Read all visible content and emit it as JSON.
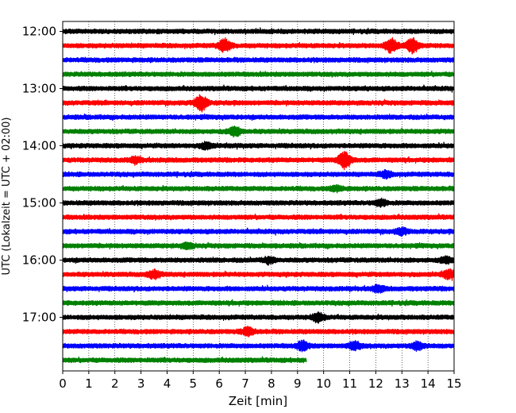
{
  "chart_data": {
    "type": "line",
    "title": "",
    "xlabel": "Zeit  [min]",
    "ylabel": "UTC (Lokalzeit = UTC + 02:00)",
    "xlim": [
      0,
      15
    ],
    "x_ticks": [
      "0",
      "1",
      "2",
      "3",
      "4",
      "5",
      "6",
      "7",
      "8",
      "9",
      "10",
      "11",
      "12",
      "13",
      "14",
      "15"
    ],
    "y_ticks": [
      "12:00",
      "13:00",
      "14:00",
      "15:00",
      "16:00",
      "17:00"
    ],
    "row_interval_minutes": 15,
    "first_row_time": "12:00",
    "grid": "vertical dotted lines at each minute",
    "legend": "none",
    "colors_cycle": [
      "#000000",
      "#ff0000",
      "#0000ff",
      "#008000"
    ],
    "series": [
      {
        "time": "12:00",
        "color": "#000000",
        "end_min": 15,
        "events": []
      },
      {
        "time": "12:15",
        "color": "#ff0000",
        "end_min": 15,
        "events": [
          {
            "t": 6.2,
            "amp": 3.2
          },
          {
            "t": 12.6,
            "amp": 3.5
          },
          {
            "t": 13.4,
            "amp": 3.8
          }
        ]
      },
      {
        "time": "12:30",
        "color": "#0000ff",
        "end_min": 15,
        "events": []
      },
      {
        "time": "12:45",
        "color": "#008000",
        "end_min": 15,
        "events": []
      },
      {
        "time": "13:00",
        "color": "#000000",
        "end_min": 15,
        "events": []
      },
      {
        "time": "13:15",
        "color": "#ff0000",
        "end_min": 15,
        "events": [
          {
            "t": 5.3,
            "amp": 4.0
          }
        ]
      },
      {
        "time": "13:30",
        "color": "#0000ff",
        "end_min": 15,
        "events": []
      },
      {
        "time": "13:45",
        "color": "#008000",
        "end_min": 15,
        "events": [
          {
            "t": 6.6,
            "amp": 2.2
          }
        ]
      },
      {
        "time": "14:00",
        "color": "#000000",
        "end_min": 15,
        "events": [
          {
            "t": 5.5,
            "amp": 1.5
          }
        ]
      },
      {
        "time": "14:15",
        "color": "#ff0000",
        "end_min": 15,
        "events": [
          {
            "t": 2.8,
            "amp": 1.3
          },
          {
            "t": 10.8,
            "amp": 4.5
          }
        ]
      },
      {
        "time": "14:30",
        "color": "#0000ff",
        "end_min": 15,
        "events": [
          {
            "t": 12.4,
            "amp": 1.5
          }
        ]
      },
      {
        "time": "14:45",
        "color": "#008000",
        "end_min": 15,
        "events": [
          {
            "t": 10.5,
            "amp": 1.2
          }
        ]
      },
      {
        "time": "15:00",
        "color": "#000000",
        "end_min": 15,
        "events": [
          {
            "t": 12.2,
            "amp": 1.5
          }
        ]
      },
      {
        "time": "15:15",
        "color": "#ff0000",
        "end_min": 15,
        "events": []
      },
      {
        "time": "15:30",
        "color": "#0000ff",
        "end_min": 15,
        "events": [
          {
            "t": 13.0,
            "amp": 1.5
          }
        ]
      },
      {
        "time": "15:45",
        "color": "#008000",
        "end_min": 15,
        "events": [
          {
            "t": 4.8,
            "amp": 1.2
          }
        ]
      },
      {
        "time": "16:00",
        "color": "#000000",
        "end_min": 15,
        "events": [
          {
            "t": 7.9,
            "amp": 1.5
          },
          {
            "t": 14.7,
            "amp": 1.4
          }
        ]
      },
      {
        "time": "16:15",
        "color": "#ff0000",
        "end_min": 15,
        "events": [
          {
            "t": 3.5,
            "amp": 2.0
          },
          {
            "t": 14.8,
            "amp": 2.0
          }
        ]
      },
      {
        "time": "16:30",
        "color": "#0000ff",
        "end_min": 15,
        "events": [
          {
            "t": 12.1,
            "amp": 1.5
          }
        ]
      },
      {
        "time": "16:45",
        "color": "#008000",
        "end_min": 15,
        "events": []
      },
      {
        "time": "17:00",
        "color": "#000000",
        "end_min": 15,
        "events": [
          {
            "t": 9.8,
            "amp": 2.2
          }
        ]
      },
      {
        "time": "17:15",
        "color": "#ff0000",
        "end_min": 15,
        "events": [
          {
            "t": 7.1,
            "amp": 2.0
          }
        ]
      },
      {
        "time": "17:30",
        "color": "#0000ff",
        "end_min": 15,
        "events": [
          {
            "t": 9.2,
            "amp": 2.2
          },
          {
            "t": 11.2,
            "amp": 2.0
          },
          {
            "t": 13.6,
            "amp": 2.0
          }
        ]
      },
      {
        "time": "17:45",
        "color": "#008000",
        "end_min": 9.35,
        "events": []
      }
    ]
  }
}
